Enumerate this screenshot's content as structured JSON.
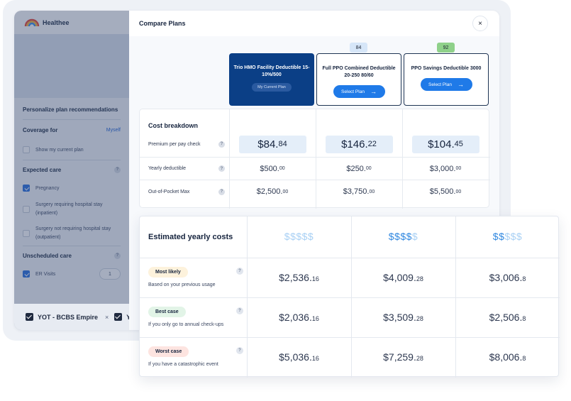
{
  "app": {
    "logo_text": "Healthee"
  },
  "sidebar": {
    "personalize_title": "Personalize plan recommendations",
    "coverage_label": "Coverage for",
    "coverage_value": "Myself",
    "show_current_plan": "Show my current plan",
    "expected_care_label": "Expected care",
    "expected_items": [
      {
        "label": "Pregnancy",
        "checked": true
      },
      {
        "label": "Surgery requiring hospital stay",
        "sub": "(inpatient)",
        "checked": false
      },
      {
        "label": "Surgery not requiring hospital stay",
        "sub": "(outpatient)",
        "checked": false
      }
    ],
    "unscheduled_label": "Unscheduled care",
    "er_visits_label": "ER Visits",
    "er_visits_value": "1",
    "help_glyph": "?"
  },
  "chips": {
    "first": "YOT - BCBS Empire",
    "close_glyph": "×",
    "second": "Y"
  },
  "panel": {
    "title": "Compare Plans",
    "close_glyph": "×",
    "plans": [
      {
        "name": "Trio HMO Facility Deductible 15-10%/500",
        "current_label": "My Current Plan"
      },
      {
        "name": "Full PPO Combined Deductible 20-250 80/60",
        "score": "84",
        "score_color": "#d6e6f8",
        "select_label": "Select Plan"
      },
      {
        "name": "PPO Savings Deductible 3000",
        "score": "92",
        "score_color": "#8fd18a",
        "select_label": "Select Plan"
      }
    ],
    "arrow_glyph": "→",
    "cost_breakdown": {
      "title": "Cost breakdown",
      "rows": [
        {
          "label": "Premium per pay check",
          "values": [
            {
              "main": "$84.",
              "cents": "84"
            },
            {
              "main": "$146.",
              "cents": "22"
            },
            {
              "main": "$104.",
              "cents": "45"
            }
          ]
        },
        {
          "label": "Yearly deductible",
          "values": [
            {
              "main": "$500.",
              "cents": "00"
            },
            {
              "main": "$250.",
              "cents": "00"
            },
            {
              "main": "$3,000.",
              "cents": "00"
            }
          ]
        },
        {
          "label": "Out-of-Pocket Max",
          "values": [
            {
              "main": "$2,500.",
              "cents": "00"
            },
            {
              "main": "$3,750.",
              "cents": "00"
            },
            {
              "main": "$5,500.",
              "cents": "00"
            }
          ]
        }
      ]
    }
  },
  "estimated": {
    "title": "Estimated yearly costs",
    "dollar_ratings": [
      {
        "on": "",
        "off": "$$$$$"
      },
      {
        "on": "$$$$",
        "off": "$"
      },
      {
        "on": "$$",
        "off": "$$$"
      }
    ],
    "rows": [
      {
        "badge": "Most likely",
        "sub": "Based on your previous usage",
        "values": [
          {
            "main": "$2,536.",
            "cents": "16"
          },
          {
            "main": "$4,009.",
            "cents": "28"
          },
          {
            "main": "$3,006.",
            "cents": "8"
          }
        ]
      },
      {
        "badge": "Best case",
        "sub": "If you only go to annual check-ups",
        "values": [
          {
            "main": "$2,036.",
            "cents": "16"
          },
          {
            "main": "$3,509.",
            "cents": "28"
          },
          {
            "main": "$2,506.",
            "cents": "8"
          }
        ]
      },
      {
        "badge": "Worst case",
        "sub": "If you have a catastrophic event",
        "values": [
          {
            "main": "$5,036.",
            "cents": "16"
          },
          {
            "main": "$7,259.",
            "cents": "28"
          },
          {
            "main": "$8,006.",
            "cents": "8"
          }
        ]
      }
    ]
  }
}
